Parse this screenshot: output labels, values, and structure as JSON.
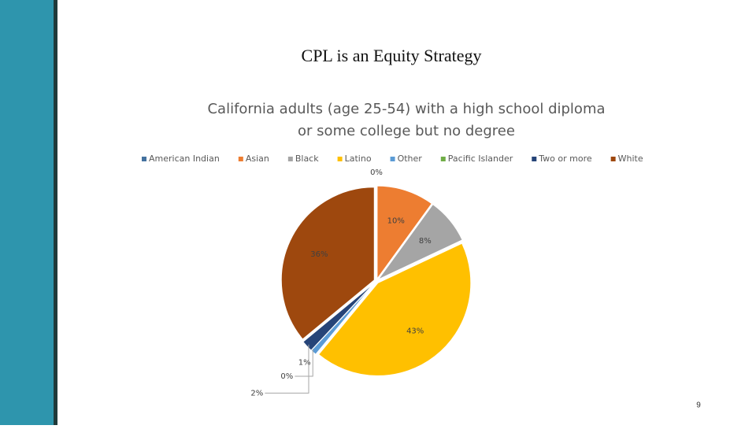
{
  "slide": {
    "title": "CPL is an Equity Strategy",
    "page_number": "9"
  },
  "chart_data": {
    "type": "pie",
    "title": [
      "California adults (age 25-54) with a high school diploma",
      "or some college but no degree"
    ],
    "categories": [
      "American Indian",
      "Asian",
      "Black",
      "Latino",
      "Other",
      "Pacific Islander",
      "Two or more",
      "White"
    ],
    "values": [
      0,
      10,
      8,
      43,
      1,
      0,
      2,
      36
    ],
    "value_labels": [
      "0%",
      "10%",
      "8%",
      "43%",
      "1%",
      "0%",
      "2%",
      "36%"
    ],
    "colors": [
      "#44729f",
      "#ed7d31",
      "#a5a5a5",
      "#ffc000",
      "#5b9bd5",
      "#70ad47",
      "#264478",
      "#9e480e"
    ],
    "legend": "top"
  }
}
